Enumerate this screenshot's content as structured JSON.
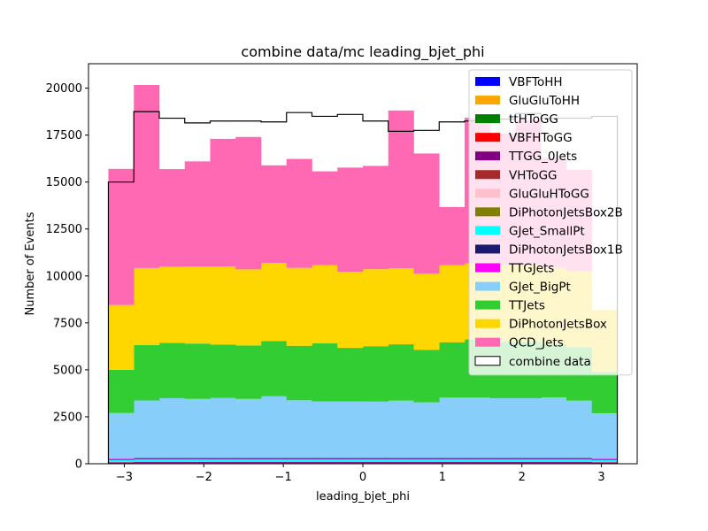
{
  "chart_data": {
    "type": "bar",
    "title": "combine data/mc leading_bjet_phi",
    "xlabel": "leading_bjet_phi",
    "ylabel": "Number of Events",
    "xlim": [
      -3.45,
      3.45
    ],
    "ylim": [
      0,
      21300
    ],
    "bin_edges": [
      -3.2,
      -2.88,
      -2.56,
      -2.24,
      -1.92,
      -1.6,
      -1.28,
      -0.96,
      -0.64,
      -0.32,
      0.0,
      0.32,
      0.64,
      0.96,
      1.28,
      1.6,
      1.92,
      2.24,
      2.56,
      2.88,
      3.2
    ],
    "xticks": [
      {
        "value": -3,
        "label": "−3"
      },
      {
        "value": -2,
        "label": "−2"
      },
      {
        "value": -1,
        "label": "−1"
      },
      {
        "value": 0,
        "label": "0"
      },
      {
        "value": 1,
        "label": "1"
      },
      {
        "value": 2,
        "label": "2"
      },
      {
        "value": 3,
        "label": "3"
      }
    ],
    "yticks": [
      {
        "value": 0,
        "label": "0"
      },
      {
        "value": 2500,
        "label": "2500"
      },
      {
        "value": 5000,
        "label": "5000"
      },
      {
        "value": 7500,
        "label": "7500"
      },
      {
        "value": 10000,
        "label": "10000"
      },
      {
        "value": 12500,
        "label": "12500"
      },
      {
        "value": 15000,
        "label": "15000"
      },
      {
        "value": 17500,
        "label": "17500"
      },
      {
        "value": 20000,
        "label": "20000"
      }
    ],
    "stacked_series": [
      {
        "name": "VBFToHH",
        "color": "#0000ff",
        "values": [
          0,
          0,
          0,
          0,
          0,
          0,
          0,
          0,
          0,
          0,
          0,
          0,
          0,
          0,
          0,
          0,
          0,
          0,
          0,
          0
        ]
      },
      {
        "name": "GluGluToHH",
        "color": "#ffa500",
        "values": [
          0,
          0,
          0,
          0,
          0,
          0,
          0,
          0,
          0,
          0,
          0,
          0,
          0,
          0,
          0,
          0,
          0,
          0,
          0,
          0
        ]
      },
      {
        "name": "ttHToGG",
        "color": "#008000",
        "values": [
          20,
          25,
          25,
          25,
          25,
          25,
          25,
          25,
          25,
          25,
          25,
          25,
          25,
          25,
          25,
          25,
          25,
          25,
          25,
          20
        ]
      },
      {
        "name": "VBFHToGG",
        "color": "#ff0000",
        "values": [
          5,
          5,
          5,
          5,
          5,
          5,
          5,
          5,
          5,
          5,
          5,
          5,
          5,
          5,
          5,
          5,
          5,
          5,
          5,
          5
        ]
      },
      {
        "name": "TTGG_0Jets",
        "color": "#800080",
        "values": [
          50,
          60,
          60,
          60,
          60,
          60,
          60,
          60,
          60,
          60,
          60,
          60,
          60,
          60,
          60,
          60,
          60,
          60,
          60,
          50
        ]
      },
      {
        "name": "VHToGG",
        "color": "#a52a2a",
        "values": [
          5,
          5,
          5,
          5,
          5,
          5,
          5,
          5,
          5,
          5,
          5,
          5,
          5,
          5,
          5,
          5,
          5,
          5,
          5,
          5
        ]
      },
      {
        "name": "GluGluHToGG",
        "color": "#ffc0cb",
        "values": [
          10,
          10,
          10,
          10,
          10,
          10,
          10,
          10,
          10,
          10,
          10,
          10,
          10,
          10,
          10,
          10,
          10,
          10,
          10,
          10
        ]
      },
      {
        "name": "DiPhotonJetsBox2B",
        "color": "#808000",
        "values": [
          10,
          10,
          10,
          10,
          10,
          10,
          10,
          10,
          10,
          10,
          10,
          10,
          10,
          10,
          10,
          10,
          10,
          10,
          10,
          10
        ]
      },
      {
        "name": "GJet_SmallPt",
        "color": "#00ffff",
        "values": [
          100,
          120,
          120,
          120,
          120,
          120,
          120,
          120,
          120,
          120,
          120,
          120,
          120,
          120,
          120,
          120,
          120,
          120,
          120,
          100
        ]
      },
      {
        "name": "DiPhotonJetsBox1B",
        "color": "#191970",
        "values": [
          30,
          35,
          35,
          35,
          35,
          35,
          35,
          35,
          35,
          35,
          35,
          35,
          35,
          35,
          35,
          35,
          35,
          35,
          35,
          30
        ]
      },
      {
        "name": "TTGJets",
        "color": "#ff00ff",
        "values": [
          40,
          50,
          50,
          50,
          50,
          50,
          50,
          50,
          50,
          50,
          50,
          50,
          50,
          50,
          50,
          50,
          50,
          50,
          50,
          40
        ]
      },
      {
        "name": "GJet_BigPt",
        "color": "#87cefa",
        "values": [
          2430,
          3050,
          3170,
          3130,
          3180,
          3130,
          3270,
          3060,
          3000,
          3000,
          2990,
          3040,
          2950,
          3200,
          3200,
          3170,
          3170,
          3210,
          3040,
          2420
        ]
      },
      {
        "name": "TTJets",
        "color": "#32cd32",
        "values": [
          2300,
          2950,
          2950,
          2950,
          2850,
          2850,
          2950,
          2900,
          3100,
          2850,
          2950,
          3000,
          2800,
          2950,
          3100,
          3000,
          3000,
          2850,
          2850,
          2200
        ]
      },
      {
        "name": "DiPhotonJetsBox",
        "color": "#ffd700",
        "values": [
          3450,
          4100,
          4050,
          4100,
          4150,
          4050,
          4150,
          4150,
          4150,
          4050,
          4100,
          4050,
          4050,
          4100,
          4050,
          4100,
          4100,
          4050,
          4050,
          3300
        ]
      },
      {
        "name": "QCD_Jets",
        "color": "#ff69b4",
        "values": [
          7250,
          9750,
          5200,
          5600,
          6800,
          7050,
          5200,
          5800,
          5000,
          5550,
          5500,
          8400,
          6400,
          3100,
          7750,
          7000,
          7700,
          5850,
          5400,
          0
        ]
      }
    ],
    "data_series": {
      "name": "combine data",
      "values": [
        15000,
        18750,
        18400,
        18150,
        18250,
        18250,
        18200,
        18700,
        18500,
        18600,
        18250,
        17700,
        17750,
        18200,
        18250,
        18350,
        18650,
        18400,
        18400,
        18500
      ]
    },
    "legend_position": "upper right"
  }
}
